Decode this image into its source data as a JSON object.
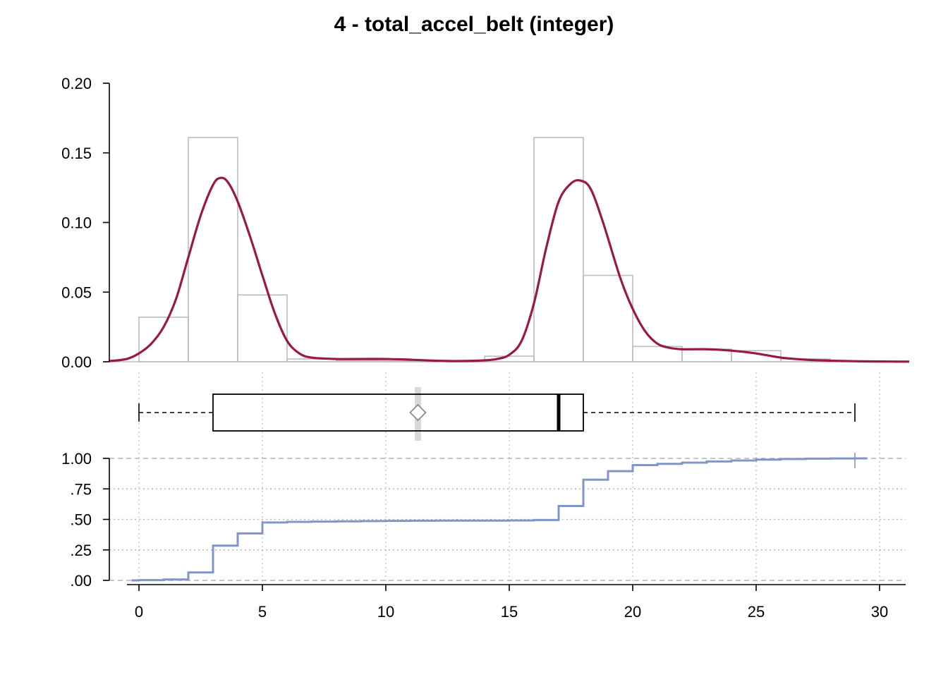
{
  "title": "4 - total_accel_belt (integer)",
  "chart_data": [
    {
      "type": "histogram",
      "panel": "density",
      "xlim": [
        -1.2,
        31.2
      ],
      "ylim": [
        0,
        0.2
      ],
      "yticks": [
        "0.00",
        "0.05",
        "0.10",
        "0.15",
        "0.20"
      ],
      "ytick_values": [
        0,
        0.05,
        0.1,
        0.15,
        0.2
      ],
      "bins": [
        {
          "x0": 0,
          "x1": 2,
          "density": 0.032
        },
        {
          "x0": 2,
          "x1": 4,
          "density": 0.161
        },
        {
          "x0": 4,
          "x1": 6,
          "density": 0.048
        },
        {
          "x0": 6,
          "x1": 8,
          "density": 0.002
        },
        {
          "x0": 8,
          "x1": 10,
          "density": 0.001
        },
        {
          "x0": 10,
          "x1": 12,
          "density": 0.0005
        },
        {
          "x0": 12,
          "x1": 14,
          "density": 0.0005
        },
        {
          "x0": 14,
          "x1": 16,
          "density": 0.004
        },
        {
          "x0": 16,
          "x1": 18,
          "density": 0.161
        },
        {
          "x0": 18,
          "x1": 20,
          "density": 0.062
        },
        {
          "x0": 20,
          "x1": 22,
          "density": 0.011
        },
        {
          "x0": 22,
          "x1": 24,
          "density": 0.009
        },
        {
          "x0": 24,
          "x1": 26,
          "density": 0.008
        },
        {
          "x0": 26,
          "x1": 28,
          "density": 0.002
        },
        {
          "x0": 28,
          "x1": 30,
          "density": 0.0005
        }
      ],
      "density_curve": {
        "x": [
          -1.2,
          -0.5,
          0,
          0.5,
          1,
          1.5,
          2,
          2.5,
          3,
          3.3,
          3.6,
          4,
          4.5,
          5,
          5.5,
          6,
          6.5,
          7,
          8,
          9,
          10,
          11,
          12,
          13,
          14,
          14.5,
          15,
          15.5,
          16,
          16.5,
          17,
          17.5,
          17.9,
          18.3,
          18.8,
          19.5,
          20,
          20.5,
          21,
          21.5,
          22,
          23,
          24,
          25,
          26,
          27,
          28,
          29,
          30,
          31.2
        ],
        "y": [
          0.0005,
          0.002,
          0.006,
          0.013,
          0.025,
          0.045,
          0.075,
          0.105,
          0.127,
          0.132,
          0.129,
          0.115,
          0.09,
          0.062,
          0.035,
          0.015,
          0.006,
          0.003,
          0.002,
          0.002,
          0.002,
          0.0015,
          0.0008,
          0.0005,
          0.001,
          0.002,
          0.005,
          0.015,
          0.042,
          0.082,
          0.115,
          0.128,
          0.13,
          0.124,
          0.1,
          0.06,
          0.038,
          0.022,
          0.013,
          0.01,
          0.009,
          0.009,
          0.008,
          0.006,
          0.003,
          0.0015,
          0.0008,
          0.0004,
          0.0002,
          0.0001
        ]
      },
      "colors": {
        "bins": "#bdbdbd",
        "curve": "#9b1747"
      }
    },
    {
      "type": "boxplot",
      "panel": "box",
      "min": 0,
      "q1": 3,
      "median": 17,
      "q3": 18,
      "max": 29,
      "mean": 11.3,
      "colors": {
        "box": "#000000",
        "mean_marker": "#8c8c8c",
        "mean_band": "#d9d9d9"
      }
    },
    {
      "type": "line",
      "panel": "ecdf",
      "step": true,
      "xlim": [
        -1.2,
        31.2
      ],
      "ylim": [
        0,
        1
      ],
      "yticks": [
        ".00",
        ".25",
        ".50",
        ".75",
        "1.00"
      ],
      "ytick_values": [
        0,
        0.25,
        0.5,
        0.75,
        1
      ],
      "xticks": [
        "0",
        "5",
        "10",
        "15",
        "20",
        "25",
        "30"
      ],
      "xtick_values": [
        0,
        5,
        10,
        15,
        20,
        25,
        30
      ],
      "x": [
        -0.3,
        0,
        1,
        2,
        3,
        4,
        5,
        6,
        7,
        8,
        9,
        10,
        11,
        12,
        13,
        14,
        15,
        16,
        17,
        18,
        19,
        20,
        21,
        22,
        23,
        24,
        25,
        26,
        27,
        28,
        29,
        29.5
      ],
      "y": [
        0,
        0.002,
        0.007,
        0.065,
        0.285,
        0.385,
        0.475,
        0.48,
        0.482,
        0.484,
        0.486,
        0.488,
        0.489,
        0.49,
        0.49,
        0.49,
        0.491,
        0.495,
        0.61,
        0.825,
        0.895,
        0.945,
        0.955,
        0.965,
        0.975,
        0.983,
        0.99,
        0.995,
        0.998,
        0.999,
        1.0,
        1.0
      ],
      "colors": {
        "line": "#8096c8"
      }
    }
  ]
}
